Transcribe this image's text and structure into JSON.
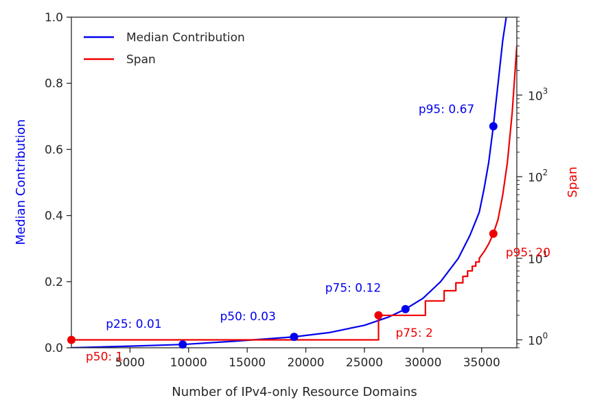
{
  "chart_data": {
    "type": "line",
    "title": "",
    "xlabel": "Number of IPv4-only Resource Domains",
    "ylabel_left": "Median Contribution",
    "ylabel_right": "Span",
    "xlim": [
      0,
      38000
    ],
    "ylim_left": [
      0,
      1.0
    ],
    "ylim_right_log": [
      0.8,
      9000
    ],
    "x_ticks": [
      5000,
      10000,
      15000,
      20000,
      25000,
      30000,
      35000
    ],
    "y_ticks_left": [
      0.0,
      0.2,
      0.4,
      0.6,
      0.8,
      1.0
    ],
    "y_ticks_right": [
      {
        "value": 1,
        "base": "10",
        "exp": "0"
      },
      {
        "value": 10,
        "base": "10",
        "exp": "1"
      },
      {
        "value": 100,
        "base": "10",
        "exp": "2"
      },
      {
        "value": 1000,
        "base": "10",
        "exp": "3"
      }
    ],
    "colors": {
      "median": "#0000ee",
      "span": "#ee0000",
      "text": "#262626"
    },
    "legend": {
      "position": "top-left",
      "entries": [
        {
          "label": "Median Contribution",
          "color": "#0000ee"
        },
        {
          "label": "Span",
          "color": "#ee0000"
        }
      ]
    },
    "series": [
      {
        "name": "Median Contribution",
        "axis": "left",
        "color": "#0000ee",
        "points": [
          [
            0,
            0
          ],
          [
            5000,
            0.005
          ],
          [
            9500,
            0.01
          ],
          [
            14000,
            0.02
          ],
          [
            19000,
            0.033
          ],
          [
            22000,
            0.046
          ],
          [
            25000,
            0.068
          ],
          [
            27000,
            0.092
          ],
          [
            28500,
            0.117
          ],
          [
            30000,
            0.15
          ],
          [
            31500,
            0.2
          ],
          [
            33000,
            0.27
          ],
          [
            34000,
            0.34
          ],
          [
            34800,
            0.41
          ],
          [
            35200,
            0.48
          ],
          [
            35600,
            0.56
          ],
          [
            36000,
            0.67
          ],
          [
            36400,
            0.8
          ],
          [
            36800,
            0.93
          ],
          [
            37100,
            1.0
          ]
        ]
      },
      {
        "name": "Span",
        "axis": "right",
        "color": "#ee0000",
        "points": [
          [
            0,
            1
          ],
          [
            26200,
            1
          ],
          [
            26200,
            2
          ],
          [
            30200,
            2
          ],
          [
            30200,
            3
          ],
          [
            31800,
            3
          ],
          [
            31800,
            4
          ],
          [
            32800,
            4
          ],
          [
            32800,
            5
          ],
          [
            33400,
            5
          ],
          [
            33400,
            6
          ],
          [
            33800,
            6
          ],
          [
            33800,
            7
          ],
          [
            34200,
            7
          ],
          [
            34200,
            8
          ],
          [
            34500,
            8
          ],
          [
            34500,
            9
          ],
          [
            34800,
            9
          ],
          [
            34800,
            10
          ],
          [
            35200,
            12
          ],
          [
            35600,
            15
          ],
          [
            36000,
            20
          ],
          [
            36400,
            30
          ],
          [
            36800,
            60
          ],
          [
            37200,
            150
          ],
          [
            37600,
            600
          ],
          [
            38000,
            4000
          ]
        ]
      }
    ],
    "markers": [
      {
        "label": "p25: 0.01",
        "axis": "left",
        "x": 9500,
        "y": 0.01,
        "color": "#0000ee"
      },
      {
        "label": "p50: 0.03",
        "axis": "left",
        "x": 19000,
        "y": 0.033,
        "color": "#0000ee"
      },
      {
        "label": "p75: 0.12",
        "axis": "left",
        "x": 28500,
        "y": 0.117,
        "color": "#0000ee"
      },
      {
        "label": "p95: 0.67",
        "axis": "left",
        "x": 36000,
        "y": 0.67,
        "color": "#0000ee"
      },
      {
        "label": "p50: 1",
        "axis": "right",
        "x": 0,
        "y": 1,
        "color": "#ee0000"
      },
      {
        "label": "p75: 2",
        "axis": "right",
        "x": 26200,
        "y": 2,
        "color": "#ee0000"
      },
      {
        "label": "p95: 20",
        "axis": "right",
        "x": 36000,
        "y": 20,
        "color": "#ee0000"
      }
    ]
  }
}
